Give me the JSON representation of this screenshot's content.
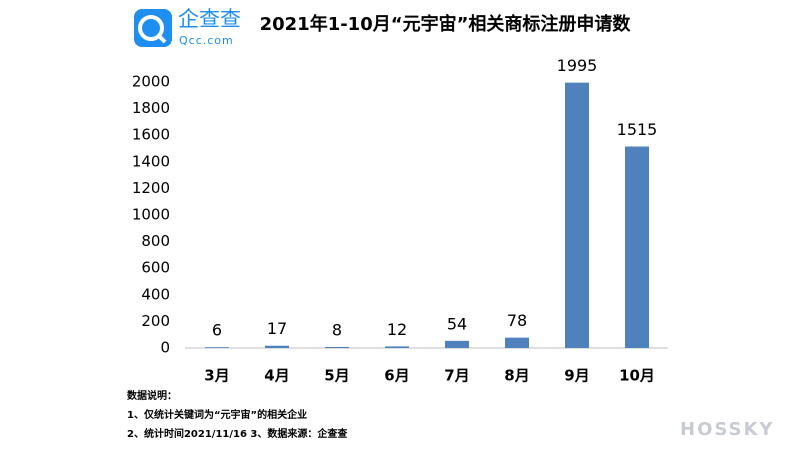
{
  "logo": {
    "name": "企查查",
    "site": "Qcc.com"
  },
  "chart_data": {
    "type": "bar",
    "title": "2021年1-10月“元宇宙”相关商标注册申请数",
    "categories": [
      "3月",
      "4月",
      "5月",
      "6月",
      "7月",
      "8月",
      "9月",
      "10月"
    ],
    "values": [
      6,
      17,
      8,
      12,
      54,
      78,
      1995,
      1515
    ],
    "color": "#4f81bd",
    "ylim": [
      0,
      2000
    ],
    "yticks": [
      0,
      200,
      400,
      600,
      800,
      1000,
      1200,
      1400,
      1600,
      1800,
      2000
    ],
    "grid": false
  },
  "notes": {
    "heading": "数据说明：",
    "lines": [
      "1、仅统计关键词为“元宇宙”的相关企业",
      "2、统计时间2021/11/16  3、数据来源：企查查"
    ]
  },
  "watermark": "HOSSKY"
}
